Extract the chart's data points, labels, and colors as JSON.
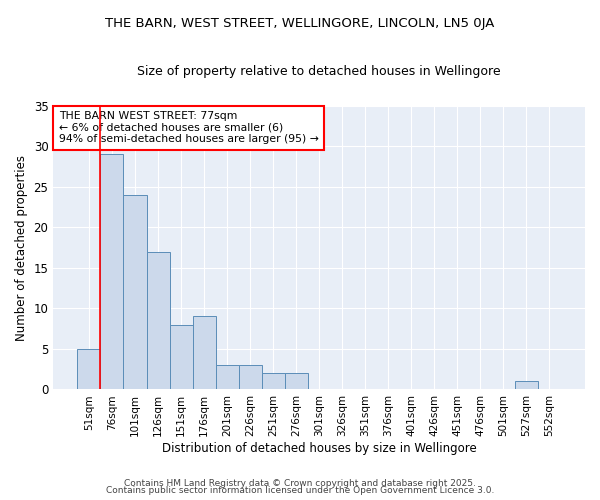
{
  "title1": "THE BARN, WEST STREET, WELLINGORE, LINCOLN, LN5 0JA",
  "title2": "Size of property relative to detached houses in Wellingore",
  "xlabel": "Distribution of detached houses by size in Wellingore",
  "ylabel": "Number of detached properties",
  "categories": [
    "51sqm",
    "76sqm",
    "101sqm",
    "126sqm",
    "151sqm",
    "176sqm",
    "201sqm",
    "226sqm",
    "251sqm",
    "276sqm",
    "301sqm",
    "326sqm",
    "351sqm",
    "376sqm",
    "401sqm",
    "426sqm",
    "451sqm",
    "476sqm",
    "501sqm",
    "527sqm",
    "552sqm"
  ],
  "values": [
    5,
    29,
    24,
    17,
    8,
    9,
    3,
    3,
    2,
    2,
    0,
    0,
    0,
    0,
    0,
    0,
    0,
    0,
    0,
    1,
    0
  ],
  "bar_color": "#ccd9eb",
  "bar_edge_color": "#5b8db8",
  "background_color": "#e8eef7",
  "figure_background": "#ffffff",
  "red_line_index": 1,
  "annotation_title": "THE BARN WEST STREET: 77sqm",
  "annotation_line1": "← 6% of detached houses are smaller (6)",
  "annotation_line2": "94% of semi-detached houses are larger (95) →",
  "ylim": [
    0,
    35
  ],
  "yticks": [
    0,
    5,
    10,
    15,
    20,
    25,
    30,
    35
  ],
  "footer1": "Contains HM Land Registry data © Crown copyright and database right 2025.",
  "footer2": "Contains public sector information licensed under the Open Government Licence 3.0."
}
